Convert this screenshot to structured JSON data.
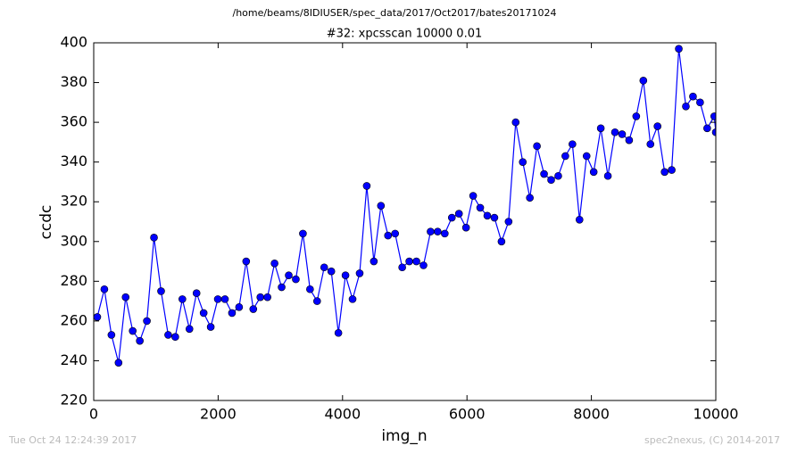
{
  "chart_data": {
    "type": "line",
    "suptitle": "/home/beams/8IDIUSER/spec_data/2017/Oct2017/bates20171024",
    "title": "#32: xpcsscan 10000 0.01",
    "x_label": "img_n",
    "y_label": "ccdc",
    "footer_left": "Tue Oct 24 12:24:39 2017",
    "footer_right": "spec2nexus, (C) 2014-2017",
    "x": [
      57,
      171,
      285,
      399,
      513,
      627,
      741,
      855,
      969,
      1083,
      1197,
      1311,
      1425,
      1539,
      1653,
      1767,
      1881,
      1995,
      2109,
      2223,
      2337,
      2451,
      2565,
      2679,
      2793,
      2907,
      3021,
      3135,
      3249,
      3363,
      3477,
      3591,
      3705,
      3819,
      3933,
      4047,
      4161,
      4275,
      4389,
      4503,
      4617,
      4731,
      4845,
      4959,
      5073,
      5187,
      5301,
      5415,
      5529,
      5643,
      5757,
      5871,
      5985,
      6099,
      6213,
      6327,
      6441,
      6555,
      6669,
      6783,
      6897,
      7011,
      7125,
      7239,
      7353,
      7467,
      7581,
      7695,
      7809,
      7923,
      8037,
      8151,
      8265,
      8379,
      8493,
      8607,
      8721,
      8835,
      8949,
      9063,
      9177,
      9291,
      9405,
      9519,
      9633,
      9747,
      9861,
      9975,
      10000
    ],
    "series": [
      {
        "name": "ccdc",
        "color": "#0000ff",
        "values": [
          262,
          276,
          253,
          239,
          272,
          255,
          250,
          260,
          302,
          275,
          253,
          252,
          271,
          256,
          274,
          264,
          257,
          271,
          271,
          264,
          267,
          290,
          266,
          272,
          272,
          289,
          277,
          283,
          281,
          304,
          276,
          270,
          287,
          285,
          254,
          283,
          271,
          284,
          328,
          290,
          318,
          303,
          304,
          287,
          290,
          290,
          288,
          305,
          305,
          304,
          312,
          314,
          307,
          323,
          317,
          313,
          312,
          300,
          310,
          360,
          340,
          322,
          348,
          334,
          331,
          333,
          343,
          349,
          311,
          343,
          335,
          357,
          333,
          355,
          354,
          351,
          363,
          381,
          349,
          358,
          335,
          336,
          397,
          368,
          373,
          370,
          357,
          363,
          355
        ]
      }
    ],
    "xlim": [
      0,
      10000
    ],
    "xticks": [
      0,
      2000,
      4000,
      6000,
      8000,
      10000
    ],
    "ylim": [
      220,
      400
    ],
    "yticks": [
      220,
      240,
      260,
      280,
      300,
      320,
      340,
      360,
      380,
      400
    ]
  }
}
